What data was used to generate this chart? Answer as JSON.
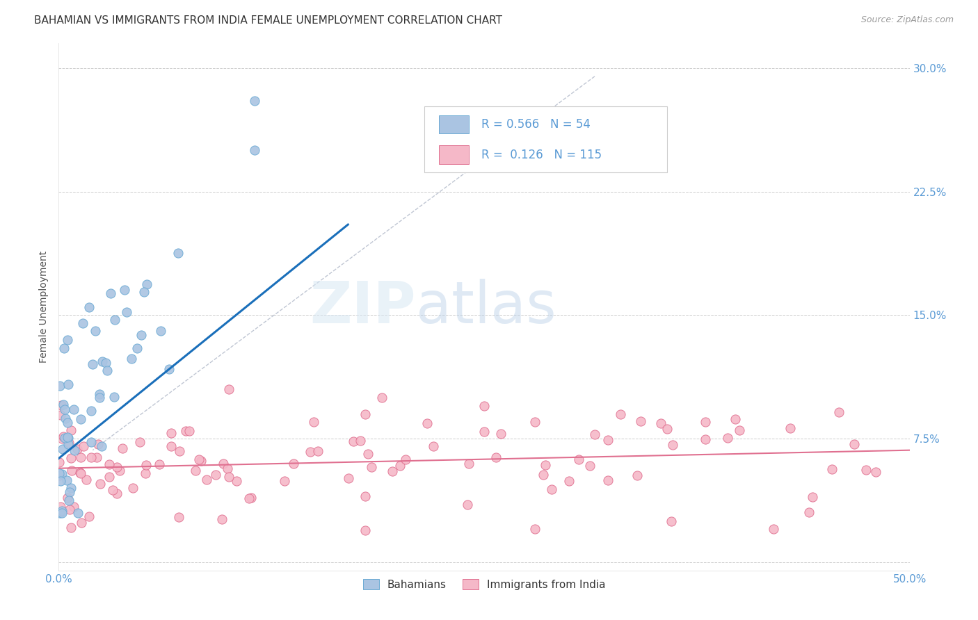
{
  "title": "BAHAMIAN VS IMMIGRANTS FROM INDIA FEMALE UNEMPLOYMENT CORRELATION CHART",
  "source": "Source: ZipAtlas.com",
  "ylabel": "Female Unemployment",
  "xlim": [
    0,
    0.5
  ],
  "ylim": [
    -0.005,
    0.315
  ],
  "yticks": [
    0.0,
    0.075,
    0.15,
    0.225,
    0.3
  ],
  "ytick_labels": [
    "",
    "7.5%",
    "15.0%",
    "22.5%",
    "30.0%"
  ],
  "xticks": [
    0.0,
    0.1,
    0.2,
    0.3,
    0.4,
    0.5
  ],
  "xtick_labels": [
    "0.0%",
    "",
    "",
    "",
    "",
    "50.0%"
  ],
  "background_color": "#ffffff",
  "grid_color": "#cccccc",
  "bah_color": "#aac4e2",
  "bah_edge": "#6aaad4",
  "bah_trend": "#1a6fba",
  "ind_color": "#f5b8c8",
  "ind_edge": "#e07090",
  "ind_trend": "#e07090",
  "bah_R": "0.566",
  "bah_N": "54",
  "ind_R": "0.126",
  "ind_N": "115",
  "watermark_zip": "ZIP",
  "watermark_atlas": "atlas",
  "tick_color": "#5b9bd5",
  "ylabel_color": "#555555",
  "title_color": "#333333",
  "source_color": "#999999",
  "legend_text_color": "#333333"
}
